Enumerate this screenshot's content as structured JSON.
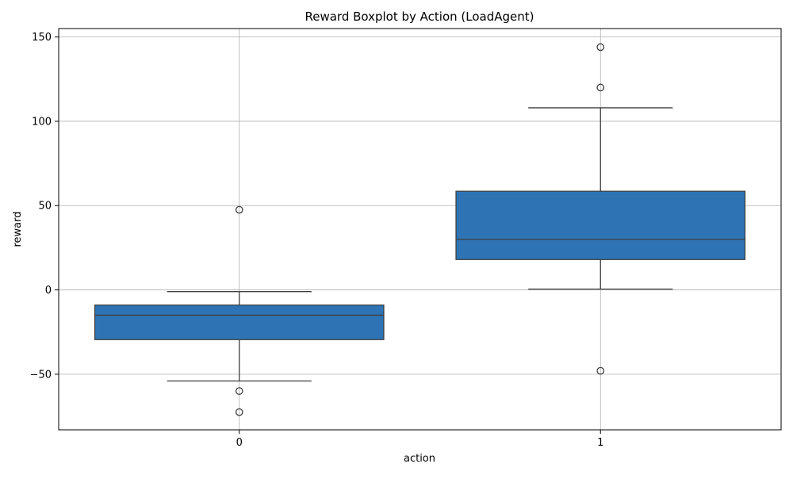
{
  "chart_data": {
    "type": "box",
    "title": "Reward Boxplot by Action (LoadAgent)",
    "xlabel": "action",
    "ylabel": "reward",
    "categories": [
      "0",
      "1"
    ],
    "ylim": [
      -83,
      155
    ],
    "yticks": [
      -50,
      0,
      50,
      100,
      150
    ],
    "ytick_labels": [
      "−50",
      "0",
      "50",
      "100",
      "150"
    ],
    "grid": true,
    "box_color": "#2e74b5",
    "line_color": "#404040",
    "boxes": [
      {
        "category": "0",
        "whisker_low": -54,
        "q1": -29.5,
        "median": -15,
        "q3": -9,
        "whisker_high": -1,
        "outliers": [
          47.5,
          -60,
          -72.5
        ]
      },
      {
        "category": "1",
        "whisker_low": 0.5,
        "q1": 18,
        "median": 30,
        "q3": 58.5,
        "whisker_high": 108,
        "outliers": [
          144,
          120,
          -48
        ]
      }
    ]
  }
}
